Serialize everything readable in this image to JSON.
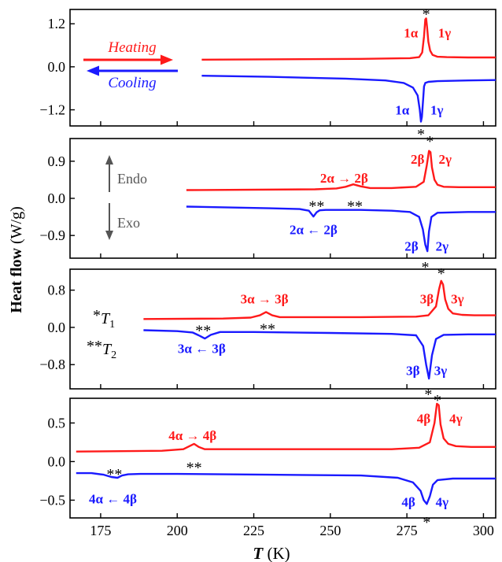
{
  "figure": {
    "ylabel_main": "Heat flow",
    "ylabel_unit": "(W/g)",
    "xlabel_main": "T",
    "xlabel_unit": "(K)",
    "legend": {
      "heating_label": "Heating",
      "cooling_label": "Cooling",
      "endo_label": "Endo",
      "exo_label": "Exo",
      "t1_marker": "*",
      "t1_label": "T",
      "t1_sub": "1",
      "t2_marker": "**",
      "t2_label": "T",
      "t2_sub": "2"
    },
    "colors": {
      "heating": "#ff1a1a",
      "cooling": "#1a1aff",
      "axis": "#000000",
      "annotation": "#555555"
    }
  },
  "chart_data": [
    {
      "type": "line",
      "panel": 1,
      "xlim": [
        165,
        304
      ],
      "ylim": [
        -1.65,
        1.6
      ],
      "yticks": [
        1.2,
        0.0,
        -1.2
      ],
      "ytick_labels": [
        "1.2",
        "0.0",
        "−1.2"
      ],
      "xticks": [
        175,
        200,
        225,
        250,
        275,
        300
      ],
      "xtick_labels": [
        "175",
        "200",
        "225",
        "250",
        "275",
        "300"
      ],
      "series": [
        {
          "name": "Heating",
          "color": "#ff1a1a",
          "x": [
            208,
            260,
            276,
            279,
            280,
            280.6,
            281,
            281.3,
            281.6,
            282,
            282.6,
            283.4,
            285,
            288,
            295,
            304
          ],
          "y": [
            0.2,
            0.22,
            0.24,
            0.27,
            0.4,
            0.85,
            1.32,
            1.35,
            1.1,
            0.7,
            0.45,
            0.33,
            0.28,
            0.27,
            0.26,
            0.26
          ]
        },
        {
          "name": "Cooling",
          "color": "#1a1aff",
          "x": [
            208,
            230,
            255,
            268,
            274,
            277,
            278.5,
            279.2,
            279.6,
            279.9,
            280.3,
            280.6,
            281,
            282,
            285,
            295,
            304
          ],
          "y": [
            -0.25,
            -0.28,
            -0.33,
            -0.38,
            -0.45,
            -0.58,
            -0.8,
            -1.2,
            -1.53,
            -1.4,
            -0.9,
            -0.55,
            -0.45,
            -0.42,
            -0.4,
            -0.38,
            -0.37
          ]
        }
      ],
      "annotations": [
        {
          "text": "1α",
          "color": "#ff1a1a",
          "x": 276.3,
          "y": 0.95
        },
        {
          "text": "1γ",
          "color": "#ff1a1a",
          "x": 287.3,
          "y": 0.95
        },
        {
          "text": "*",
          "color": "#000000",
          "x": 281.3,
          "y": 1.55
        },
        {
          "text": "1α",
          "color": "#1a1aff",
          "x": 273.5,
          "y": -1.2
        },
        {
          "text": "1γ",
          "color": "#1a1aff",
          "x": 284.8,
          "y": -1.2
        },
        {
          "text": "*",
          "color": "#000000",
          "x": 279.6,
          "y": -1.8
        }
      ]
    },
    {
      "type": "line",
      "panel": 2,
      "xlim": [
        165,
        304
      ],
      "ylim": [
        -1.45,
        1.45
      ],
      "yticks": [
        0.9,
        0.0,
        -0.9
      ],
      "ytick_labels": [
        "0.9",
        "0.0",
        "−0.9"
      ],
      "xticks": [
        175,
        200,
        225,
        250,
        275,
        300
      ],
      "xtick_labels": [
        "175",
        "200",
        "225",
        "250",
        "275",
        "300"
      ],
      "series": [
        {
          "name": "Heating",
          "color": "#ff1a1a",
          "x": [
            203,
            245,
            252,
            255,
            257.5,
            260,
            263,
            270,
            278,
            280.5,
            281.5,
            282.2,
            282.7,
            283.2,
            284,
            285,
            287,
            292,
            304
          ],
          "y": [
            0.2,
            0.22,
            0.24,
            0.28,
            0.34,
            0.29,
            0.25,
            0.25,
            0.28,
            0.4,
            0.8,
            1.15,
            1.12,
            0.75,
            0.45,
            0.33,
            0.28,
            0.27,
            0.27
          ]
        },
        {
          "name": "Cooling",
          "color": "#1a1aff",
          "x": [
            203,
            230,
            240,
            243,
            244.5,
            245.5,
            246.5,
            248.5,
            252,
            260,
            270,
            276,
            279,
            280.2,
            281,
            281.7,
            282.2,
            283,
            285,
            295,
            304
          ],
          "y": [
            -0.2,
            -0.24,
            -0.26,
            -0.3,
            -0.44,
            -0.34,
            -0.29,
            -0.28,
            -0.28,
            -0.28,
            -0.3,
            -0.33,
            -0.45,
            -0.75,
            -1.12,
            -1.28,
            -0.8,
            -0.45,
            -0.35,
            -0.33,
            -0.33
          ]
        }
      ],
      "annotations": [
        {
          "text": "2β",
          "color": "#ff1a1a",
          "x": 278.5,
          "y": 0.95
        },
        {
          "text": "2γ",
          "color": "#ff1a1a",
          "x": 287.5,
          "y": 0.95
        },
        {
          "text": "*",
          "color": "#000000",
          "x": 282.5,
          "y": 1.45
        },
        {
          "text": "2α → 2β",
          "color": "#ff1a1a",
          "x": 254.5,
          "y": 0.5
        },
        {
          "text": "**",
          "color": "#000000",
          "x": 258.0,
          "y": -0.12
        },
        {
          "text": "**",
          "color": "#000000",
          "x": 245.5,
          "y": -0.12
        },
        {
          "text": "2α ← 2β",
          "color": "#1a1aff",
          "x": 244.5,
          "y": -0.75
        },
        {
          "text": "2β",
          "color": "#1a1aff",
          "x": 276.5,
          "y": -1.15
        },
        {
          "text": "2γ",
          "color": "#1a1aff",
          "x": 286.5,
          "y": -1.15
        },
        {
          "text": "*",
          "color": "#000000",
          "x": 281.0,
          "y": -1.6
        }
      ]
    },
    {
      "type": "line",
      "panel": 3,
      "xlim": [
        165,
        304
      ],
      "ylim": [
        -1.32,
        1.25
      ],
      "yticks": [
        0.8,
        0.0,
        -0.8
      ],
      "ytick_labels": [
        "0.8",
        "0.0",
        "−0.8"
      ],
      "xticks": [
        175,
        200,
        225,
        250,
        275,
        300
      ],
      "xtick_labels": [
        "175",
        "200",
        "225",
        "250",
        "275",
        "300"
      ],
      "series": [
        {
          "name": "Heating",
          "color": "#ff1a1a",
          "x": [
            189,
            215,
            224,
            227,
            229,
            231,
            233.5,
            240,
            260,
            278,
            282,
            284.5,
            285.5,
            286.2,
            286.8,
            287.5,
            288.5,
            290,
            293,
            297,
            304
          ],
          "y": [
            0.18,
            0.19,
            0.21,
            0.26,
            0.33,
            0.26,
            0.22,
            0.22,
            0.22,
            0.23,
            0.26,
            0.45,
            0.82,
            1.0,
            0.92,
            0.6,
            0.4,
            0.3,
            0.27,
            0.26,
            0.26
          ]
        },
        {
          "name": "Cooling",
          "color": "#1a1aff",
          "x": [
            189,
            200,
            205,
            207,
            209,
            211,
            214,
            225,
            250,
            270,
            278,
            280.3,
            281.3,
            282.2,
            283.2,
            284.5,
            287,
            295,
            304
          ],
          "y": [
            -0.06,
            -0.08,
            -0.11,
            -0.17,
            -0.24,
            -0.16,
            -0.1,
            -0.1,
            -0.12,
            -0.14,
            -0.17,
            -0.4,
            -0.8,
            -1.1,
            -0.6,
            -0.25,
            -0.16,
            -0.15,
            -0.15
          ]
        }
      ],
      "annotations": [
        {
          "text": "3β",
          "color": "#ff1a1a",
          "x": 281.5,
          "y": 0.62
        },
        {
          "text": "3γ",
          "color": "#ff1a1a",
          "x": 291.5,
          "y": 0.62
        },
        {
          "text": "*",
          "color": "#000000",
          "x": 286.2,
          "y": 1.22
        },
        {
          "text": "3α → 3β",
          "color": "#ff1a1a",
          "x": 228.5,
          "y": 0.62
        },
        {
          "text": "**",
          "color": "#000000",
          "x": 229.5,
          "y": 0.02
        },
        {
          "text": "**",
          "color": "#000000",
          "x": 208.5,
          "y": -0.01
        },
        {
          "text": "3α ← 3β",
          "color": "#1a1aff",
          "x": 208.0,
          "y": -0.45
        },
        {
          "text": "3β",
          "color": "#1a1aff",
          "x": 277.0,
          "y": -0.92
        },
        {
          "text": "3γ",
          "color": "#1a1aff",
          "x": 286.0,
          "y": -0.92
        },
        {
          "text": "*",
          "color": "#000000",
          "x": 282.0,
          "y": -1.38
        }
      ]
    },
    {
      "type": "line",
      "panel": 4,
      "xlim": [
        165,
        304
      ],
      "ylim": [
        -0.73,
        0.82
      ],
      "yticks": [
        0.5,
        0.0,
        -0.5
      ],
      "ytick_labels": [
        "0.5",
        "0.0",
        "−0.5"
      ],
      "xticks": [
        175,
        200,
        225,
        250,
        275,
        300
      ],
      "xtick_labels": [
        "175",
        "200",
        "225",
        "250",
        "275",
        "300"
      ],
      "series": [
        {
          "name": "Heating",
          "color": "#ff1a1a",
          "x": [
            167,
            195,
            202,
            204,
            205.5,
            207,
            209,
            215,
            240,
            270,
            279,
            282.5,
            284,
            284.8,
            285.4,
            286,
            287,
            288.5,
            291,
            296,
            304
          ],
          "y": [
            0.13,
            0.14,
            0.16,
            0.2,
            0.23,
            0.19,
            0.16,
            0.16,
            0.16,
            0.16,
            0.18,
            0.25,
            0.5,
            0.75,
            0.73,
            0.48,
            0.3,
            0.23,
            0.2,
            0.19,
            0.19
          ]
        },
        {
          "name": "Cooling",
          "color": "#1a1aff",
          "x": [
            167,
            172,
            176,
            178.5,
            180.5,
            182,
            184,
            188,
            200,
            230,
            260,
            272,
            277,
            279.5,
            280.5,
            281.5,
            282.5,
            283.5,
            285,
            290,
            304
          ],
          "y": [
            -0.15,
            -0.15,
            -0.17,
            -0.2,
            -0.21,
            -0.18,
            -0.165,
            -0.16,
            -0.16,
            -0.17,
            -0.18,
            -0.21,
            -0.27,
            -0.38,
            -0.5,
            -0.55,
            -0.45,
            -0.3,
            -0.24,
            -0.22,
            -0.22
          ]
        }
      ],
      "annotations": [
        {
          "text": "4β",
          "color": "#ff1a1a",
          "x": 280.5,
          "y": 0.56
        },
        {
          "text": "4γ",
          "color": "#ff1a1a",
          "x": 291.0,
          "y": 0.56
        },
        {
          "text": "*",
          "color": "#000000",
          "x": 285.0,
          "y": 0.83
        },
        {
          "text": "4α → 4β",
          "color": "#ff1a1a",
          "x": 205.0,
          "y": 0.34
        },
        {
          "text": "**",
          "color": "#000000",
          "x": 205.5,
          "y": -0.04
        },
        {
          "text": "**",
          "color": "#000000",
          "x": 179.5,
          "y": -0.13
        },
        {
          "text": "4α ← 4β",
          "color": "#1a1aff",
          "x": 179.0,
          "y": -0.48
        },
        {
          "text": "4β",
          "color": "#1a1aff",
          "x": 275.5,
          "y": -0.52
        },
        {
          "text": "4γ",
          "color": "#1a1aff",
          "x": 286.5,
          "y": -0.52
        },
        {
          "text": "*",
          "color": "#000000",
          "x": 281.5,
          "y": -0.75
        }
      ]
    }
  ]
}
